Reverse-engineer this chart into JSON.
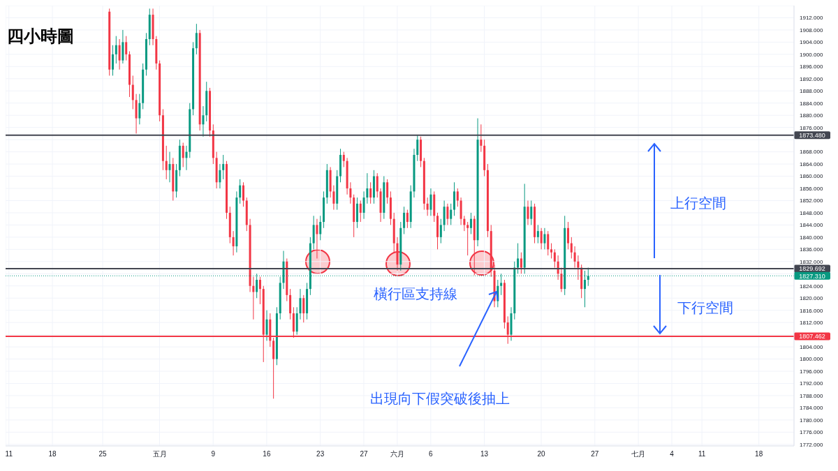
{
  "chart_data": {
    "type": "candlestick",
    "title": "四小時圖",
    "annotations": [
      "橫行區支持線",
      "出現向下假突破後抽上",
      "上行空間",
      "下行空間"
    ],
    "categories": [
      "11",
      null,
      null,
      null,
      null,
      null,
      null,
      null,
      null,
      null,
      null,
      null,
      null,
      "18",
      null,
      null,
      null,
      null,
      null,
      null,
      null,
      null,
      null,
      null,
      null,
      null,
      null,
      null,
      "25",
      null,
      null,
      null,
      null,
      null,
      null,
      null,
      null,
      null,
      null,
      null,
      null,
      null,
      null,
      null,
      null,
      "五月",
      null,
      null,
      null,
      null,
      null,
      null,
      null,
      null,
      null,
      null,
      null,
      null,
      null,
      null,
      null,
      "9",
      null,
      null,
      null,
      null,
      null,
      null,
      null,
      null,
      null,
      null,
      null,
      null,
      null,
      null,
      null,
      "16",
      null,
      null,
      null,
      null,
      null,
      null,
      null,
      null,
      null,
      null,
      null,
      null,
      null,
      null,
      null,
      "23",
      null,
      null,
      null,
      null,
      null,
      null,
      null,
      null,
      null,
      null,
      null,
      null,
      "27",
      null,
      null,
      null,
      null,
      null,
      null,
      null,
      null,
      null,
      "六月",
      null,
      null,
      null,
      null,
      null,
      null,
      null,
      null,
      null,
      "6",
      null,
      null,
      null,
      null,
      null,
      null,
      null,
      null,
      null,
      null,
      null,
      null,
      null,
      null,
      null,
      "13",
      null,
      null,
      null,
      null,
      null,
      null,
      null,
      null,
      null,
      null,
      null,
      null,
      null,
      null,
      null,
      null,
      "20",
      null,
      null,
      null,
      null,
      null,
      null,
      null,
      null,
      null,
      null,
      null,
      null,
      null,
      null,
      null,
      "27",
      null,
      null,
      null,
      null,
      null,
      null,
      null,
      null,
      null,
      null,
      null,
      null,
      "七月",
      null,
      null,
      null,
      null,
      null,
      null,
      null,
      null,
      null,
      "4",
      null,
      null,
      null,
      null,
      null,
      null,
      null,
      null,
      "11",
      null,
      null,
      null,
      null,
      null,
      null,
      null,
      null,
      null,
      null,
      null,
      null,
      null,
      null,
      null,
      null,
      "18",
      null,
      null,
      null,
      null,
      null,
      null,
      null,
      null,
      null,
      null
    ],
    "ohlc": [
      null,
      null,
      null,
      null,
      null,
      null,
      null,
      null,
      null,
      null,
      null,
      null,
      null,
      null,
      null,
      null,
      null,
      null,
      null,
      null,
      null,
      null,
      null,
      null,
      null,
      null,
      null,
      null,
      null,
      null,
      [
        1914,
        1915,
        1893,
        1895
      ],
      [
        1895,
        1903,
        1893,
        1900
      ],
      [
        1900,
        1906,
        1897,
        1903
      ],
      [
        1903,
        1905,
        1895,
        1898
      ],
      [
        1898,
        1908,
        1897,
        1904
      ],
      [
        1904,
        1906,
        1898,
        1900
      ],
      [
        1900,
        1901,
        1886,
        1890
      ],
      [
        1890,
        1893,
        1882,
        1885
      ],
      [
        1885,
        1887,
        1874,
        1879
      ],
      [
        1879,
        1887,
        1877,
        1884
      ],
      [
        1884,
        1897,
        1882,
        1895
      ],
      [
        1895,
        1907,
        1893,
        1905
      ],
      [
        1905,
        1915,
        1903,
        1913
      ],
      [
        1913,
        1915,
        1903,
        1905
      ],
      [
        1905,
        1906,
        1895,
        1897
      ],
      [
        1897,
        1898,
        1878,
        1880
      ],
      [
        1880,
        1882,
        1862,
        1865
      ],
      [
        1865,
        1870,
        1859,
        1862
      ],
      [
        1862,
        1868,
        1858,
        1864
      ],
      [
        1864,
        1866,
        1852,
        1855
      ],
      [
        1855,
        1864,
        1853,
        1862
      ],
      [
        1862,
        1872,
        1860,
        1870
      ],
      [
        1870,
        1871,
        1863,
        1866
      ],
      [
        1866,
        1870,
        1862,
        1868
      ],
      [
        1868,
        1884,
        1866,
        1882
      ],
      [
        1882,
        1904,
        1880,
        1902
      ],
      [
        1902,
        1910,
        1900,
        1907
      ],
      [
        1907,
        1908,
        1875,
        1877
      ],
      [
        1877,
        1883,
        1873,
        1880
      ],
      [
        1880,
        1891,
        1878,
        1888
      ],
      [
        1888,
        1889,
        1873,
        1875
      ],
      [
        1875,
        1877,
        1864,
        1866
      ],
      [
        1866,
        1868,
        1856,
        1858
      ],
      [
        1858,
        1864,
        1856,
        1862
      ],
      [
        1862,
        1867,
        1859,
        1864
      ],
      [
        1864,
        1865,
        1846,
        1848
      ],
      [
        1848,
        1850,
        1838,
        1840
      ],
      [
        1840,
        1842,
        1834,
        1837
      ],
      [
        1837,
        1855,
        1835,
        1853
      ],
      [
        1853,
        1859,
        1851,
        1857
      ],
      [
        1857,
        1858,
        1850,
        1852
      ],
      [
        1852,
        1853,
        1842,
        1844
      ],
      [
        1844,
        1846,
        1822,
        1824
      ],
      [
        1824,
        1827,
        1813,
        1822
      ],
      [
        1822,
        1828,
        1820,
        1826
      ],
      [
        1826,
        1827,
        1818,
        1823
      ],
      [
        1823,
        1824,
        1799,
        1808
      ],
      [
        1808,
        1816,
        1806,
        1813
      ],
      [
        1813,
        1815,
        1804,
        1806
      ],
      [
        1806,
        1807,
        1787,
        1800
      ],
      [
        1800,
        1817,
        1798,
        1815
      ],
      [
        1815,
        1827,
        1813,
        1825
      ],
      [
        1825,
        1835.5,
        1823,
        1832
      ],
      [
        1832,
        1833,
        1819,
        1821
      ],
      [
        1821,
        1823,
        1813,
        1815
      ],
      [
        1815,
        1817,
        1807,
        1809
      ],
      [
        1809,
        1817,
        1808,
        1815
      ],
      [
        1815,
        1823,
        1813,
        1820
      ],
      [
        1820,
        1821,
        1812,
        1815
      ],
      [
        1815,
        1825,
        1813,
        1823
      ],
      [
        1823,
        1840,
        1821,
        1838
      ],
      [
        1838,
        1847,
        1836,
        1844
      ],
      [
        1844,
        1846,
        1833,
        1841
      ],
      [
        1841,
        1847,
        1839,
        1845
      ],
      [
        1845,
        1855,
        1843,
        1853
      ],
      [
        1853,
        1864,
        1851,
        1862
      ],
      [
        1862,
        1863,
        1853,
        1855
      ],
      [
        1855,
        1857,
        1849,
        1851
      ],
      [
        1851,
        1862,
        1849,
        1860
      ],
      [
        1860,
        1869,
        1858,
        1867
      ],
      [
        1867,
        1868,
        1863,
        1865
      ],
      [
        1865,
        1866,
        1854,
        1856
      ],
      [
        1856,
        1858,
        1851,
        1853
      ],
      [
        1853,
        1854,
        1840,
        1845
      ],
      [
        1845,
        1853,
        1843,
        1851
      ],
      [
        1851,
        1852,
        1845,
        1848
      ],
      [
        1848,
        1855,
        1846,
        1853
      ],
      [
        1853,
        1861,
        1851,
        1856
      ],
      [
        1856,
        1858,
        1851,
        1853
      ],
      [
        1853,
        1862,
        1851,
        1860
      ],
      [
        1860,
        1861,
        1853,
        1855
      ],
      [
        1855,
        1856,
        1845,
        1848
      ],
      [
        1848,
        1860,
        1846,
        1858
      ],
      [
        1858,
        1859,
        1851,
        1853
      ],
      [
        1853,
        1855,
        1844,
        1846
      ],
      [
        1846,
        1848,
        1835,
        1838
      ],
      [
        1838,
        1840,
        1829,
        1831
      ],
      [
        1831,
        1845,
        1829,
        1843
      ],
      [
        1843,
        1850,
        1841,
        1848
      ],
      [
        1848,
        1849,
        1843,
        1845
      ],
      [
        1845,
        1857,
        1843,
        1855
      ],
      [
        1855,
        1869,
        1853,
        1867
      ],
      [
        1867,
        1873.5,
        1865,
        1872
      ],
      [
        1872,
        1873,
        1863,
        1865
      ],
      [
        1865,
        1866,
        1849,
        1851
      ],
      [
        1851,
        1853,
        1847,
        1849
      ],
      [
        1849,
        1856,
        1847,
        1854
      ],
      [
        1854,
        1855,
        1845,
        1847
      ],
      [
        1847,
        1848,
        1836,
        1840
      ],
      [
        1840,
        1846,
        1838,
        1844
      ],
      [
        1844,
        1852,
        1842,
        1850
      ],
      [
        1850,
        1851,
        1844,
        1846
      ],
      [
        1846,
        1851,
        1844,
        1849
      ],
      [
        1849,
        1858,
        1847,
        1855
      ],
      [
        1855,
        1856,
        1850,
        1852
      ],
      [
        1852,
        1853,
        1844,
        1846
      ],
      [
        1846,
        1847,
        1842,
        1844
      ],
      [
        1844,
        1845,
        1834,
        1843
      ],
      [
        1843,
        1848,
        1841,
        1846
      ],
      [
        1846,
        1847,
        1827.5,
        1839
      ],
      [
        1839,
        1879,
        1837,
        1872
      ],
      [
        1872,
        1877,
        1868,
        1870
      ],
      [
        1870,
        1872,
        1860,
        1862
      ],
      [
        1862,
        1864,
        1840,
        1842
      ],
      [
        1842,
        1844,
        1827,
        1829
      ],
      [
        1829,
        1831,
        1817,
        1819
      ],
      [
        1819,
        1826,
        1817,
        1824
      ],
      [
        1824,
        1828,
        1821,
        1825
      ],
      [
        1825,
        1826,
        1810,
        1812
      ],
      [
        1812,
        1814,
        1805,
        1808
      ],
      [
        1808,
        1817,
        1806,
        1815
      ],
      [
        1815,
        1832,
        1813,
        1830
      ],
      [
        1830,
        1838,
        1828,
        1833
      ],
      [
        1833,
        1835,
        1828,
        1830
      ],
      [
        1830,
        1857.5,
        1828,
        1850
      ],
      [
        1850,
        1852,
        1844,
        1846
      ],
      [
        1846,
        1852,
        1844,
        1850
      ],
      [
        1850,
        1851,
        1838,
        1840
      ],
      [
        1840,
        1844,
        1838,
        1842
      ],
      [
        1842,
        1843,
        1836,
        1838
      ],
      [
        1838,
        1843,
        1836,
        1841
      ],
      [
        1841,
        1842,
        1834,
        1836
      ],
      [
        1836,
        1838,
        1833,
        1835
      ],
      [
        1835,
        1836,
        1830,
        1832
      ],
      [
        1832,
        1834,
        1826,
        1828
      ],
      [
        1828,
        1830,
        1822,
        1823
      ],
      [
        1823,
        1847,
        1821,
        1843
      ],
      [
        1843,
        1845,
        1836,
        1838
      ],
      [
        1838,
        1840,
        1833,
        1835
      ],
      [
        1835,
        1837,
        1830,
        1832
      ],
      [
        1832,
        1834,
        1826,
        1830
      ],
      [
        1830,
        1831,
        1820,
        1823
      ],
      [
        1823,
        1829,
        1817,
        1826
      ],
      [
        1826,
        1830,
        1824,
        1827.31
      ],
      null,
      null,
      null,
      null,
      null,
      null,
      null,
      null,
      null,
      null,
      null,
      null,
      null,
      null,
      null,
      null,
      null,
      null,
      null,
      null,
      null,
      null,
      null,
      null,
      null,
      null,
      null,
      null,
      null,
      null,
      null,
      null,
      null,
      null,
      null,
      null,
      null,
      null,
      null,
      null,
      null,
      null,
      null,
      null,
      null,
      null,
      null,
      null,
      null,
      null,
      null,
      null,
      null,
      null,
      null,
      null,
      null,
      null,
      null,
      null,
      null
    ],
    "ylim": [
      1771.5,
      1916
    ],
    "yticks": [
      {
        "value": 1772,
        "label": "1772.000"
      },
      {
        "value": 1776,
        "label": "1776.000"
      },
      {
        "value": 1780,
        "label": "1780.000"
      },
      {
        "value": 1784,
        "label": "1784.000"
      },
      {
        "value": 1788,
        "label": "1788.000"
      },
      {
        "value": 1792,
        "label": "1792.000"
      },
      {
        "value": 1796,
        "label": "1796.000"
      },
      {
        "value": 1800,
        "label": "1800.000"
      },
      {
        "value": 1804,
        "label": "1804.000"
      },
      {
        "value": 1808,
        "label": null
      },
      {
        "value": 1812,
        "label": "1812.000"
      },
      {
        "value": 1816,
        "label": "1816.000"
      },
      {
        "value": 1820,
        "label": "1820.000"
      },
      {
        "value": 1824,
        "label": "1824.000"
      },
      {
        "value": 1828,
        "label": null
      },
      {
        "value": 1832,
        "label": "1832.000"
      },
      {
        "value": 1836,
        "label": "1836.000"
      },
      {
        "value": 1840,
        "label": "1840.000"
      },
      {
        "value": 1844,
        "label": "1844.000"
      },
      {
        "value": 1848,
        "label": "1848.000"
      },
      {
        "value": 1852,
        "label": "1852.000"
      },
      {
        "value": 1856,
        "label": "1856.000"
      },
      {
        "value": 1860,
        "label": "1860.000"
      },
      {
        "value": 1864,
        "label": "1864.000"
      },
      {
        "value": 1868,
        "label": "1868.000"
      },
      {
        "value": 1872,
        "label": null
      },
      {
        "value": 1876,
        "label": "1876.000"
      },
      {
        "value": 1880,
        "label": "1880.000"
      },
      {
        "value": 1884,
        "label": "1884.000"
      },
      {
        "value": 1888,
        "label": "1888.000"
      },
      {
        "value": 1892,
        "label": "1892.000"
      },
      {
        "value": 1896,
        "label": "1896.000"
      },
      {
        "value": 1900,
        "label": "1900.000"
      },
      {
        "value": 1904,
        "label": "1904.000"
      },
      {
        "value": 1908,
        "label": "1908.000"
      },
      {
        "value": 1912,
        "label": "1912.000"
      }
    ],
    "ref_lines": [
      {
        "axis": "y",
        "value": 1873.48,
        "label": "1873.480",
        "color": "#434651",
        "line_style": "solid"
      },
      {
        "axis": "y",
        "value": 1829.692,
        "label": "1829.692",
        "color": "#434651",
        "line_style": "solid"
      },
      {
        "axis": "y",
        "value": 1827.31,
        "label": "1827.310",
        "color": "#089981",
        "line_style": "dotted"
      },
      {
        "axis": "y",
        "value": 1807.462,
        "label": "1807.462",
        "color": "#f23645",
        "line_style": "solid"
      }
    ],
    "grid": true
  }
}
